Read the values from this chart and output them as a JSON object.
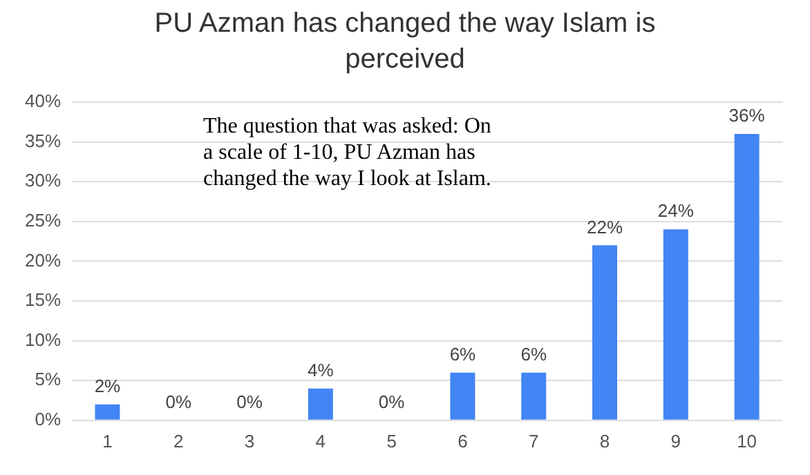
{
  "chart_data": {
    "type": "bar",
    "title": "PU Azman has changed the way Islam is perceived",
    "categories": [
      "1",
      "2",
      "3",
      "4",
      "5",
      "6",
      "7",
      "8",
      "9",
      "10"
    ],
    "values": [
      2,
      0,
      0,
      4,
      0,
      6,
      6,
      22,
      24,
      36
    ],
    "value_labels": [
      "2%",
      "0%",
      "0%",
      "4%",
      "0%",
      "6%",
      "6%",
      "22%",
      "24%",
      "36%"
    ],
    "color": "#4285f4",
    "ylim": [
      0,
      40
    ],
    "yticks": [
      {
        "value": 0,
        "label": "0%"
      },
      {
        "value": 5,
        "label": "5%"
      },
      {
        "value": 10,
        "label": "10%"
      },
      {
        "value": 15,
        "label": "15%"
      },
      {
        "value": 20,
        "label": "20%"
      },
      {
        "value": 25,
        "label": "25%"
      },
      {
        "value": 30,
        "label": "30%"
      },
      {
        "value": 35,
        "label": "35%"
      },
      {
        "value": 40,
        "label": "40%"
      }
    ],
    "grid": "y",
    "legend": false,
    "annotations": [
      "The question that was asked: On a scale of 1-10, PU Azman has changed the way I look at Islam."
    ]
  }
}
